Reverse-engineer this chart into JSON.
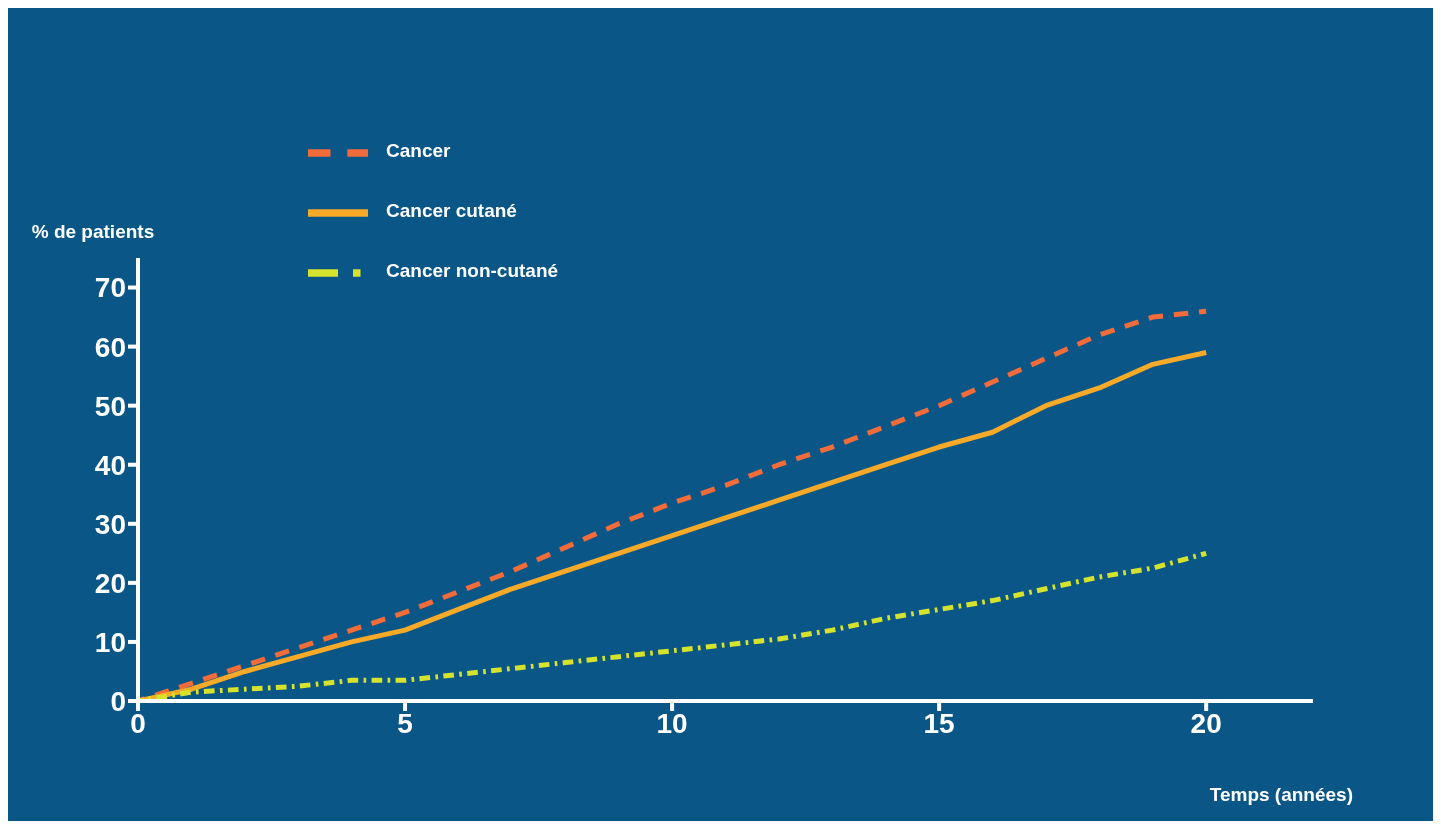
{
  "chart_data": {
    "type": "line",
    "ylabel": "% de patients",
    "xlabel": "Temps (années)",
    "x": [
      0,
      1,
      2,
      3,
      4,
      5,
      6,
      7,
      8,
      9,
      10,
      11,
      12,
      13,
      14,
      15,
      16,
      17,
      18,
      19,
      20
    ],
    "series": [
      {
        "name": "Cancer",
        "color": "#f26b3a",
        "line_style": "dashed",
        "values": [
          0,
          3,
          6,
          9,
          12,
          15,
          18.5,
          22,
          26,
          30,
          33.5,
          36.5,
          40,
          43,
          46.5,
          50,
          54,
          58,
          62,
          65,
          66
        ]
      },
      {
        "name": "Cancer cutané",
        "color": "#f7a928",
        "line_style": "solid",
        "values": [
          0,
          2,
          5,
          7.5,
          10,
          12,
          15.5,
          19,
          22,
          25,
          28,
          31,
          34,
          37,
          40,
          43,
          45.5,
          50,
          53,
          57,
          59
        ]
      },
      {
        "name": "Cancer non-cutané",
        "color": "#d6e32c",
        "line_style": "dashdot",
        "values": [
          0,
          1.5,
          2,
          2.5,
          3.5,
          3.5,
          4.5,
          5.5,
          6.5,
          7.5,
          8.5,
          9.5,
          10.5,
          12,
          14,
          15.5,
          17,
          19,
          21,
          22.5,
          25
        ]
      }
    ],
    "xlim": [
      0,
      22
    ],
    "xticks": [
      0,
      5,
      10,
      15,
      20
    ],
    "ylim": [
      0,
      75
    ],
    "yticks": [
      0,
      10,
      20,
      30,
      40,
      50,
      60,
      70
    ],
    "grid": false,
    "legend": "top left",
    "marker": "none"
  }
}
